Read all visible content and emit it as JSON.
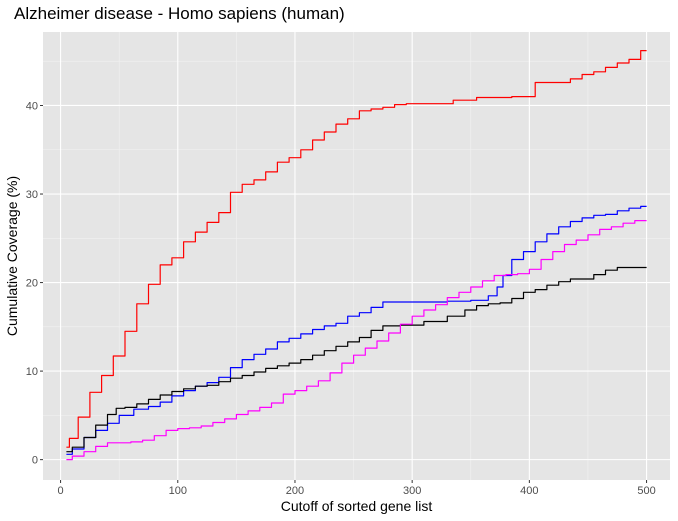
{
  "chart_data": {
    "type": "line",
    "title": "Alzheimer disease - Homo sapiens (human)",
    "xlabel": "Cutoff of sorted gene list",
    "ylabel": "Cumulative Coverage (%)",
    "xlim": [
      -15,
      520
    ],
    "ylim": [
      -2.3,
      48.3
    ],
    "x_ticks": [
      0,
      100,
      200,
      300,
      400,
      500
    ],
    "y_ticks": [
      0,
      10,
      20,
      30,
      40
    ],
    "grid": true,
    "legend": "none",
    "background": "#e5e5e5",
    "series": [
      {
        "color": "#ff0000",
        "x": [
          5,
          10,
          20,
          30,
          40,
          50,
          60,
          70,
          80,
          90,
          100,
          110,
          120,
          130,
          140,
          150,
          160,
          170,
          180,
          190,
          200,
          210,
          220,
          230,
          240,
          250,
          260,
          270,
          280,
          290,
          300,
          330,
          340,
          370,
          400,
          410,
          420,
          430,
          440,
          450,
          460,
          470,
          480,
          490,
          500
        ],
        "y": [
          1.4,
          2.4,
          4.8,
          7.6,
          9.5,
          11.7,
          14.5,
          17.6,
          19.8,
          22.0,
          22.8,
          24.6,
          25.7,
          26.8,
          27.9,
          30.2,
          31.1,
          31.6,
          32.5,
          33.6,
          34.1,
          35.0,
          36.1,
          37.0,
          37.9,
          38.5,
          39.4,
          39.6,
          39.8,
          40.1,
          40.2,
          40.2,
          40.6,
          40.9,
          41.0,
          42.6,
          42.6,
          42.6,
          43.0,
          43.5,
          43.8,
          44.3,
          44.8,
          45.2,
          46.2
        ]
      },
      {
        "color": "#0000ff",
        "x": [
          5,
          15,
          25,
          35,
          45,
          55,
          70,
          80,
          90,
          100,
          110,
          120,
          130,
          140,
          150,
          160,
          170,
          180,
          190,
          200,
          210,
          220,
          230,
          240,
          250,
          260,
          270,
          280,
          300,
          320,
          340,
          360,
          370,
          375,
          380,
          390,
          400,
          410,
          420,
          430,
          440,
          450,
          460,
          470,
          480,
          490,
          500
        ],
        "y": [
          0.6,
          1.2,
          2.5,
          3.3,
          4.1,
          5.0,
          5.7,
          6.0,
          6.5,
          7.2,
          7.8,
          8.3,
          8.7,
          9.3,
          10.4,
          11.3,
          11.9,
          12.5,
          13.3,
          13.7,
          14.2,
          14.7,
          15.1,
          15.4,
          16.2,
          16.6,
          17.2,
          17.8,
          17.8,
          17.8,
          17.9,
          18.0,
          18.5,
          19.5,
          20.8,
          22.6,
          23.5,
          24.6,
          25.5,
          26.3,
          26.9,
          27.3,
          27.6,
          27.7,
          28.1,
          28.4,
          28.6
        ]
      },
      {
        "color": "#000000",
        "x": [
          5,
          15,
          25,
          35,
          45,
          50,
          60,
          70,
          80,
          90,
          100,
          110,
          120,
          130,
          140,
          150,
          160,
          170,
          180,
          190,
          200,
          210,
          220,
          230,
          240,
          250,
          260,
          270,
          280,
          300,
          320,
          340,
          350,
          360,
          370,
          380,
          390,
          400,
          410,
          420,
          430,
          440,
          450,
          460,
          470,
          480,
          490,
          500
        ],
        "y": [
          0.9,
          1.4,
          2.5,
          3.9,
          5.1,
          5.8,
          5.9,
          6.3,
          6.8,
          7.3,
          7.7,
          8.0,
          8.3,
          8.4,
          8.8,
          9.2,
          9.5,
          9.9,
          10.3,
          10.6,
          10.9,
          11.3,
          11.8,
          12.3,
          12.8,
          13.3,
          13.8,
          14.6,
          15.1,
          15.2,
          15.6,
          16.2,
          16.9,
          17.4,
          17.6,
          17.7,
          18.2,
          18.9,
          19.2,
          19.7,
          20.1,
          20.4,
          20.4,
          20.9,
          21.4,
          21.7,
          21.7,
          21.7
        ]
      },
      {
        "color": "#ff00ff",
        "x": [
          5,
          15,
          25,
          35,
          45,
          55,
          65,
          75,
          85,
          95,
          105,
          115,
          125,
          135,
          145,
          155,
          165,
          175,
          185,
          195,
          205,
          215,
          225,
          235,
          245,
          255,
          265,
          275,
          285,
          295,
          305,
          315,
          325,
          335,
          345,
          355,
          365,
          375,
          385,
          395,
          405,
          415,
          425,
          435,
          445,
          455,
          465,
          475,
          485,
          495,
          500
        ],
        "y": [
          0.0,
          0.4,
          0.9,
          1.5,
          1.9,
          1.9,
          2.0,
          2.2,
          2.7,
          3.3,
          3.5,
          3.6,
          3.8,
          4.2,
          4.6,
          5.1,
          5.5,
          5.9,
          6.4,
          7.4,
          7.8,
          8.3,
          8.9,
          9.8,
          10.9,
          11.8,
          12.6,
          13.4,
          14.3,
          15.3,
          16.2,
          16.9,
          17.5,
          18.3,
          18.9,
          19.5,
          20.2,
          20.8,
          20.9,
          21.0,
          21.5,
          22.6,
          23.5,
          24.3,
          24.8,
          25.4,
          26.0,
          26.3,
          26.7,
          27.0,
          27.0
        ]
      }
    ]
  }
}
